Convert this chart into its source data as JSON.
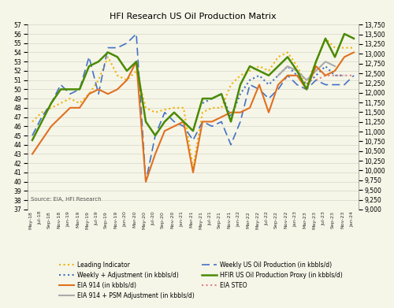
{
  "title": "HFI Research US Oil Production Matrix",
  "source_text": "Source: EIA, HFI Research",
  "left_ylim": [
    37,
    57
  ],
  "right_ylim": [
    9000,
    13750
  ],
  "right_yticks": [
    9000,
    9250,
    9500,
    9750,
    10000,
    10250,
    10500,
    10750,
    11000,
    11250,
    11500,
    11750,
    12000,
    12250,
    12500,
    12750,
    13000,
    13250,
    13500,
    13750
  ],
  "left_yticks": [
    37,
    38,
    39,
    40,
    41,
    42,
    43,
    44,
    45,
    46,
    47,
    48,
    49,
    50,
    51,
    52,
    53,
    54,
    55,
    56,
    57
  ],
  "bg_color": "#f5f5e8",
  "grid_color": "#d8d8c8",
  "legend_entries": [
    {
      "label": "Leading Indicator",
      "color": "#f0b400",
      "linestyle": "dotted",
      "linewidth": 1.5
    },
    {
      "label": "Weekly + Adjustment (in kbbls/d)",
      "color": "#4472c4",
      "linestyle": "dotted",
      "linewidth": 1.5
    },
    {
      "label": "EIA 914 (in kbbls/d)",
      "color": "#e07020",
      "linestyle": "solid",
      "linewidth": 1.5
    },
    {
      "label": "EIA 914 + PSM Adjustment (in kbbls/d)",
      "color": "#aaaaaa",
      "linestyle": "solid",
      "linewidth": 1.5
    },
    {
      "label": "Weekly US Oil Production (in kbbls/d)",
      "color": "#4472c4",
      "linestyle": "dashed",
      "linewidth": 1.2
    },
    {
      "label": "HFIR US Oil Production Proxy (in kbbls/d)",
      "color": "#4a8a00",
      "linestyle": "solid",
      "linewidth": 1.8
    },
    {
      "label": "EIA STEO",
      "color": "#e08080",
      "linestyle": "dotted",
      "linewidth": 1.5
    }
  ],
  "xtick_labels": [
    "May-18",
    "Jul-18",
    "Sep-18",
    "Nov-18",
    "Jan-19",
    "Mar-19",
    "May-19",
    "Jul-19",
    "Sep-19",
    "Nov-19",
    "Jan-20",
    "Mar-20",
    "May-20",
    "Jul-20",
    "Sep-20",
    "Nov-20",
    "Jan-21",
    "Mar-21",
    "May-21",
    "Jul-21",
    "Sep-21",
    "Nov-21",
    "Jan-22",
    "Mar-22",
    "May-22",
    "Jul-22",
    "Sep-22",
    "Nov-22",
    "Jan-23",
    "Mar-23",
    "May-23",
    "Jul-23",
    "Sep-23",
    "Nov-23",
    "Jan-24"
  ],
  "series": {
    "leading_indicator": [
      46.5,
      47.5,
      48.0,
      48.5,
      49.0,
      48.5,
      49.5,
      51.0,
      53.5,
      51.5,
      51.0,
      52.0,
      48.0,
      47.5,
      47.8,
      48.0,
      48.0,
      41.5,
      47.5,
      48.0,
      48.0,
      50.5,
      51.5,
      52.0,
      52.5,
      52.0,
      53.5,
      54.0,
      52.5,
      50.5,
      53.0,
      55.5,
      54.5,
      54.5,
      54.5
    ],
    "weekly_adj": [
      null,
      null,
      null,
      null,
      null,
      null,
      null,
      null,
      null,
      null,
      null,
      null,
      null,
      null,
      null,
      null,
      null,
      null,
      48.5,
      49.0,
      49.5,
      47.0,
      49.5,
      51.0,
      51.5,
      50.5,
      51.5,
      52.5,
      51.5,
      50.5,
      51.5,
      52.5,
      51.5,
      51.5,
      null
    ],
    "eia914": [
      43.0,
      44.5,
      46.0,
      47.0,
      48.0,
      48.0,
      49.5,
      50.0,
      49.5,
      50.0,
      51.0,
      53.0,
      40.0,
      43.0,
      45.5,
      46.0,
      46.5,
      41.0,
      46.5,
      46.5,
      47.0,
      47.5,
      47.5,
      48.0,
      50.5,
      47.5,
      50.5,
      51.5,
      51.5,
      50.0,
      52.5,
      51.5,
      52.0,
      53.5,
      54.0
    ],
    "eia914_psm": [
      null,
      null,
      null,
      null,
      null,
      null,
      null,
      null,
      null,
      null,
      null,
      null,
      null,
      null,
      null,
      null,
      null,
      null,
      null,
      null,
      null,
      null,
      null,
      null,
      null,
      null,
      51.5,
      52.5,
      52.0,
      51.0,
      52.0,
      53.0,
      52.5,
      null,
      null
    ],
    "weekly_us": [
      45.0,
      47.0,
      48.5,
      50.5,
      49.5,
      50.0,
      53.5,
      49.5,
      54.5,
      54.5,
      55.0,
      56.0,
      40.0,
      45.0,
      47.5,
      46.5,
      46.0,
      44.5,
      46.5,
      46.0,
      46.5,
      44.0,
      46.5,
      50.5,
      50.0,
      49.0,
      50.0,
      51.5,
      50.5,
      50.0,
      51.0,
      50.5,
      50.5,
      50.5,
      51.5
    ],
    "hfir_proxy": [
      44.5,
      46.5,
      48.5,
      50.0,
      50.0,
      50.0,
      52.5,
      53.0,
      54.0,
      53.5,
      52.0,
      53.0,
      46.5,
      45.0,
      46.5,
      47.5,
      46.5,
      45.5,
      49.0,
      49.0,
      49.5,
      46.5,
      50.5,
      52.5,
      52.0,
      51.5,
      52.5,
      53.5,
      52.0,
      50.0,
      53.0,
      55.5,
      53.5,
      56.0,
      55.5
    ],
    "eia_steo": [
      null,
      null,
      null,
      null,
      null,
      null,
      null,
      null,
      null,
      null,
      null,
      null,
      null,
      null,
      null,
      null,
      null,
      null,
      null,
      null,
      null,
      null,
      null,
      null,
      null,
      null,
      null,
      null,
      null,
      null,
      51.0,
      51.5,
      51.5,
      51.5,
      51.5
    ]
  }
}
